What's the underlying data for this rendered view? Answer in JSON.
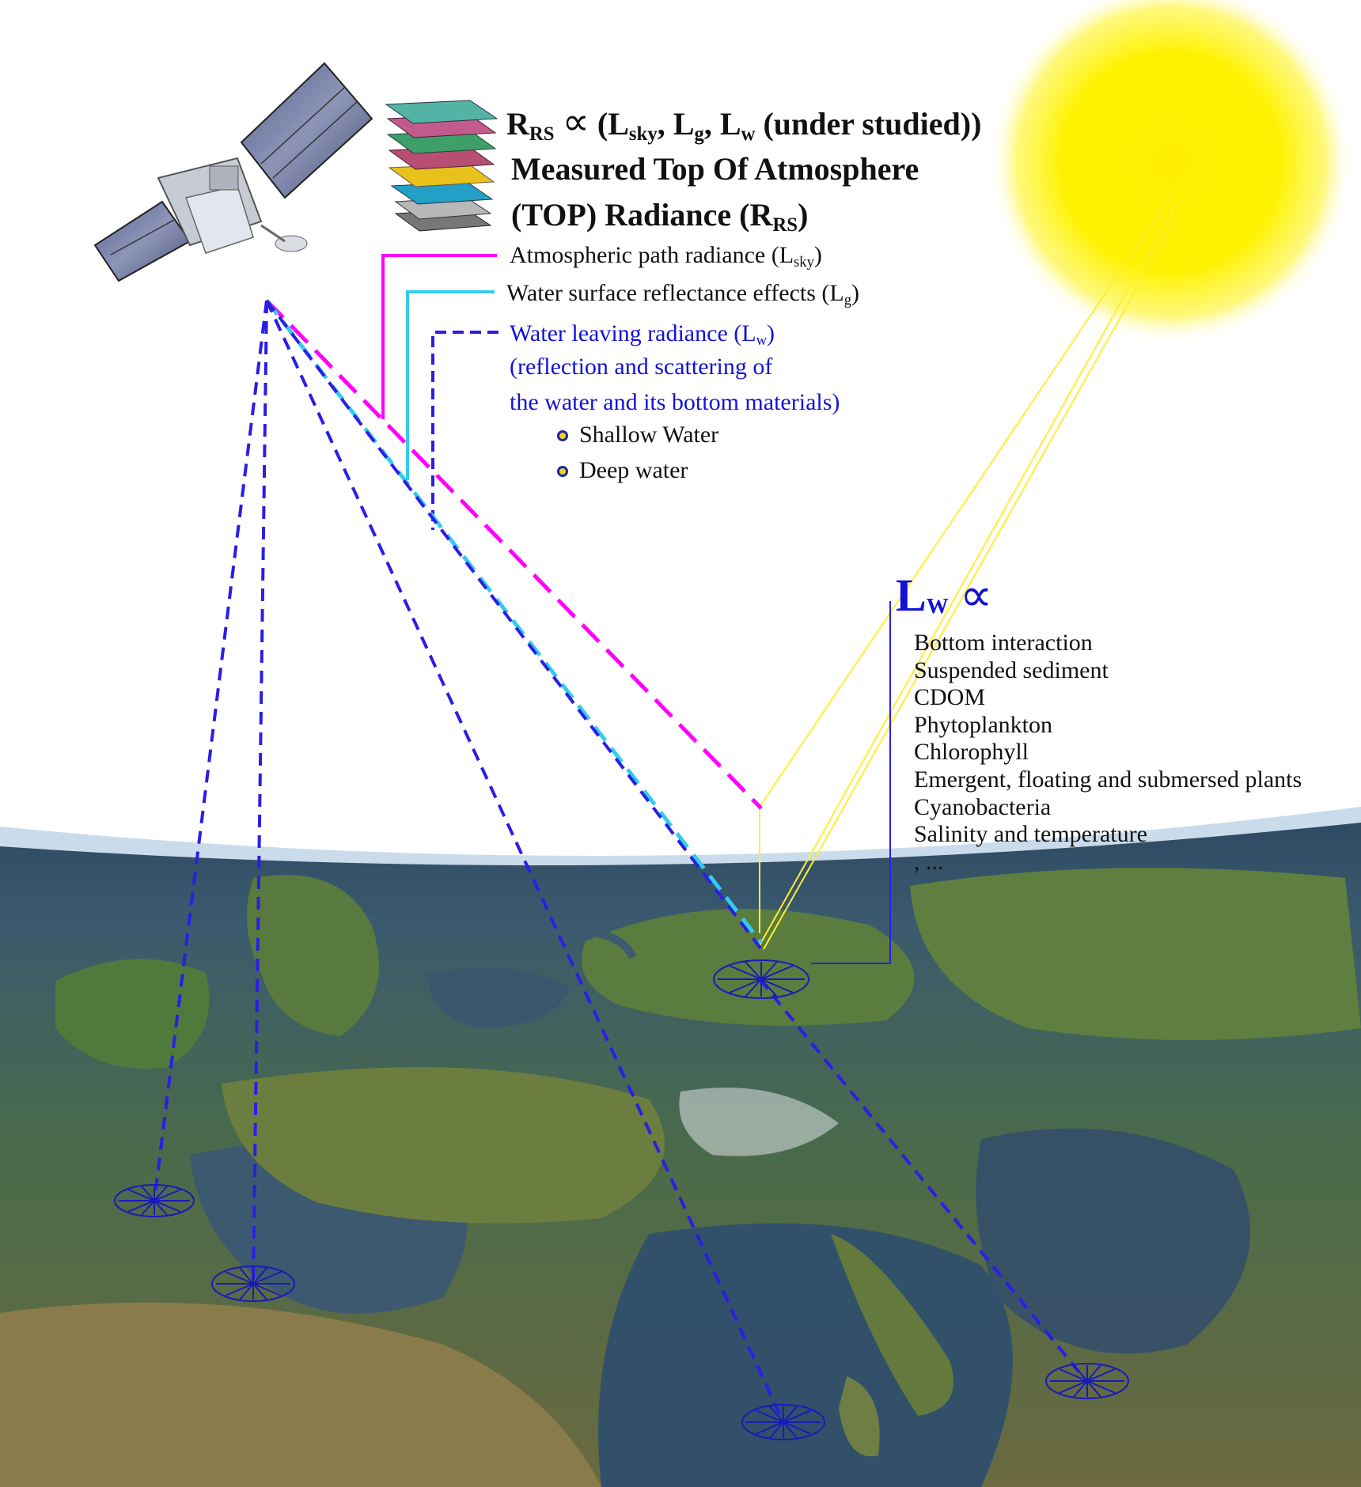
{
  "header": {
    "rrs_main": "R",
    "rrs_sub": "RS",
    "prop_symbol": "∝",
    "formula_open": "(L",
    "lsky_sub": "sky",
    "sep1": ", L",
    "lg_sub": "g",
    "sep2": ", L",
    "lw_sub": "w",
    "formula_close": " (under studied))",
    "title_line1": "Measured Top Of Atmosphere",
    "title_line2_main": "(TOP) Radiance (R",
    "title_line2_sub": "RS",
    "title_line2_close": ")"
  },
  "components": {
    "atmospheric_main": "Atmospheric path radiance (L",
    "atmospheric_sub": "sky",
    "atmospheric_close": ")",
    "surface_main": "Water surface reflectance effects (L",
    "surface_sub": "g",
    "surface_close": ")",
    "water_leaving_main": "Water leaving radiance (L",
    "water_leaving_sub": "w",
    "water_leaving_close": ")",
    "water_leaving_line2": "(reflection and scattering of",
    "water_leaving_line3": "the water and its bottom materials)",
    "bullets": [
      "Shallow Water",
      "Deep water"
    ]
  },
  "lw_box": {
    "symbol_main": "L",
    "symbol_sub": "W",
    "prop_symbol": "∝",
    "factors": [
      "Bottom interaction",
      "Suspended sediment",
      "CDOM",
      "Phytoplankton",
      "Chlorophyll",
      "Emergent, floating and submersed plants",
      "Cyanobacteria",
      "Salinity and temperature",
      ", ..."
    ]
  },
  "colors": {
    "atmospheric_path": "#ff00ff",
    "surface_reflectance": "#33ccee",
    "water_leaving": "#2a1ee6",
    "sun": "#ffee00",
    "sun_rays": "#ffee33",
    "text_blue": "#1212d8"
  }
}
